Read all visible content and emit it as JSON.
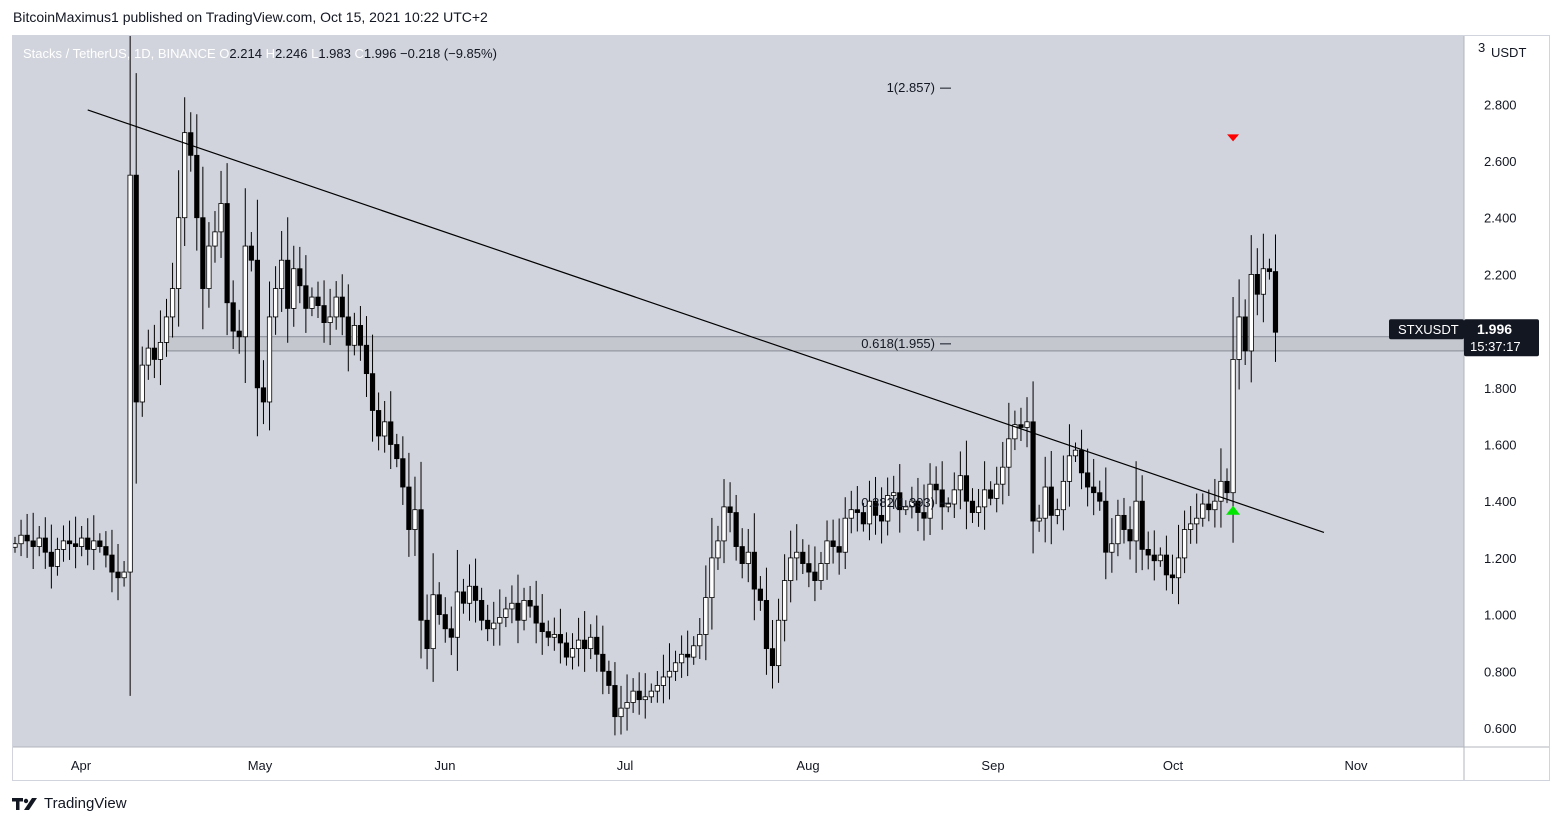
{
  "header": {
    "published": "BitcoinMaximus1 published on TradingView.com, Oct 15, 2021 10:22 UTC+2"
  },
  "legend": {
    "symbol": "Stacks / TetherUS, 1D, BINANCE",
    "o_label": "O",
    "o_value": "2.214",
    "h_label": "H",
    "h_value": "2.246",
    "l_label": "L",
    "l_value": "1.983",
    "c_label": "C",
    "c_value": "1.996",
    "change": "−0.218 (−9.85%)"
  },
  "axis": {
    "currency": "USDT",
    "top_tick": "3"
  },
  "price_tag": {
    "symbol": "STXUSDT",
    "price": "1.996",
    "countdown": "15:37:17"
  },
  "fib_labels": {
    "top": "1(2.857)",
    "mid": "0.618(1.955)",
    "low": "0.382(1.393)"
  },
  "footer": {
    "brand": "TradingView"
  },
  "colors": {
    "plot_bg": "#d1d4dc",
    "axis_bg": "#ffffff",
    "candle_up": "#ffffff",
    "candle_down": "#000000",
    "wick": "#000000",
    "trendline": "#000000",
    "zone_fill": "#c0c3cb",
    "sell_marker": "#ff0000",
    "buy_marker": "#00e600"
  },
  "chart_data": {
    "type": "candlestick",
    "title": "Stacks / TetherUS, 1D, BINANCE",
    "y_range": [
      0.55,
      3.05
    ],
    "y_ticks": [
      "0.600",
      "0.800",
      "1.000",
      "1.200",
      "1.400",
      "1.600",
      "1.800",
      "2.000",
      "2.200",
      "2.400",
      "2.600",
      "2.800"
    ],
    "x_ticks": [
      "Apr",
      "May",
      "Jun",
      "Jul",
      "Aug",
      "Sep",
      "Oct",
      "Nov"
    ],
    "start_date": "2021-03-25",
    "closes": [
      1.25,
      1.28,
      1.26,
      1.24,
      1.27,
      1.22,
      1.17,
      1.23,
      1.26,
      1.25,
      1.24,
      1.27,
      1.23,
      1.26,
      1.24,
      1.21,
      1.15,
      1.13,
      1.15,
      2.55,
      1.75,
      1.88,
      1.94,
      1.9,
      1.96,
      2.05,
      2.15,
      2.4,
      2.7,
      2.62,
      2.4,
      2.15,
      2.3,
      2.35,
      2.45,
      2.1,
      2.0,
      1.98,
      2.3,
      2.25,
      1.8,
      1.75,
      2.05,
      2.15,
      2.25,
      2.08,
      2.22,
      2.16,
      2.08,
      2.12,
      2.09,
      2.03,
      2.05,
      2.12,
      2.05,
      1.95,
      2.02,
      1.95,
      1.85,
      1.72,
      1.63,
      1.68,
      1.6,
      1.55,
      1.45,
      1.3,
      1.37,
      0.98,
      0.88,
      1.07,
      1.0,
      0.95,
      0.92,
      1.08,
      1.04,
      1.1,
      1.05,
      0.98,
      0.95,
      0.97,
      0.99,
      1.02,
      1.04,
      0.98,
      1.05,
      1.03,
      0.97,
      0.94,
      0.92,
      0.93,
      0.9,
      0.85,
      0.88,
      0.91,
      0.88,
      0.92,
      0.86,
      0.8,
      0.75,
      0.64,
      0.67,
      0.69,
      0.73,
      0.7,
      0.71,
      0.73,
      0.75,
      0.78,
      0.8,
      0.83,
      0.86,
      0.85,
      0.89,
      0.93,
      1.06,
      1.2,
      1.26,
      1.38,
      1.36,
      1.24,
      1.18,
      1.22,
      1.09,
      1.05,
      0.88,
      0.82,
      0.98,
      1.12,
      1.2,
      1.22,
      1.18,
      1.15,
      1.12,
      1.18,
      1.26,
      1.24,
      1.22,
      1.34,
      1.37,
      1.36,
      1.32,
      1.4,
      1.35,
      1.33,
      1.42,
      1.43,
      1.37,
      1.38,
      1.4,
      1.36,
      1.34,
      1.46,
      1.44,
      1.38,
      1.39,
      1.44,
      1.49,
      1.4,
      1.36,
      1.38,
      1.44,
      1.41,
      1.46,
      1.52,
      1.62,
      1.67,
      1.66,
      1.68,
      1.33,
      1.34,
      1.45,
      1.35,
      1.37,
      1.47,
      1.56,
      1.58,
      1.5,
      1.45,
      1.43,
      1.4,
      1.22,
      1.25,
      1.35,
      1.3,
      1.26,
      1.4,
      1.23,
      1.21,
      1.19,
      1.21,
      1.14,
      1.13,
      1.2,
      1.3,
      1.32,
      1.34,
      1.39,
      1.37,
      1.4,
      1.47,
      1.43,
      1.9,
      2.05,
      1.93,
      2.2,
      2.13,
      2.22,
      2.21,
      1.996
    ],
    "trendline": {
      "start_date": "2021-04-06",
      "start_price": 2.78,
      "end_date": "2021-10-27",
      "end_price": 1.29
    },
    "horizontal_zone": {
      "start_date": "2021-04-19",
      "low": 1.93,
      "high": 1.98
    },
    "fib_levels": [
      {
        "ratio": "1",
        "price": 2.857
      },
      {
        "ratio": "0.618",
        "price": 1.955
      },
      {
        "ratio": "0.382",
        "price": 1.393
      }
    ],
    "markers": [
      {
        "type": "sell",
        "date": "2021-10-12",
        "price": 2.68
      },
      {
        "type": "buy",
        "date": "2021-10-12",
        "price": 1.37
      }
    ],
    "last_price": 1.996,
    "grid": false
  }
}
